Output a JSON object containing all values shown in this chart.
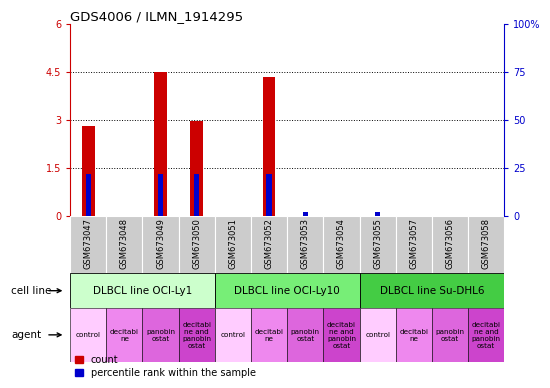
{
  "title": "GDS4006 / ILMN_1914295",
  "samples": [
    "GSM673047",
    "GSM673048",
    "GSM673049",
    "GSM673050",
    "GSM673051",
    "GSM673052",
    "GSM673053",
    "GSM673054",
    "GSM673055",
    "GSM673057",
    "GSM673056",
    "GSM673058"
  ],
  "count_values": [
    2.8,
    0,
    4.5,
    2.95,
    0,
    4.35,
    0,
    0,
    0,
    0,
    0,
    0
  ],
  "percentile_values": [
    22,
    0,
    22,
    22,
    0,
    22,
    2,
    0,
    2,
    0,
    0,
    0
  ],
  "ylim_left": [
    0,
    6
  ],
  "ylim_right": [
    0,
    100
  ],
  "yticks_left": [
    0,
    1.5,
    3,
    4.5,
    6
  ],
  "yticks_left_labels": [
    "0",
    "1.5",
    "3",
    "4.5",
    "6"
  ],
  "yticks_right": [
    0,
    25,
    50,
    75,
    100
  ],
  "yticks_right_labels": [
    "0",
    "25",
    "50",
    "75",
    "100%"
  ],
  "cell_lines": [
    {
      "label": "DLBCL line OCI-Ly1",
      "start": 0,
      "end": 4,
      "color": "#ccffcc"
    },
    {
      "label": "DLBCL line OCI-Ly10",
      "start": 4,
      "end": 8,
      "color": "#77ee77"
    },
    {
      "label": "DLBCL line Su-DHL6",
      "start": 8,
      "end": 12,
      "color": "#44cc44"
    }
  ],
  "agents": [
    "control",
    "decitabi\nne",
    "panobin\nostat",
    "decitabi\nne and\npanobin\nostat",
    "control",
    "decitabi\nne",
    "panobin\nostat",
    "decitabi\nne and\npanobin\nostat",
    "control",
    "decitabi\nne",
    "panobin\nostat",
    "decitabi\nne and\npanobin\nostat"
  ],
  "agent_colors": [
    "#ffccff",
    "#ff99ff",
    "#ff66ff",
    "#ff33ff",
    "#ffccff",
    "#ff99ff",
    "#ff66ff",
    "#ff33ff",
    "#ffccff",
    "#ff99ff",
    "#ff66ff",
    "#ff33ff"
  ],
  "bar_color_count": "#cc0000",
  "bar_color_pct": "#0000cc",
  "tick_bg": "#cccccc",
  "count_bar_width": 0.35,
  "pct_bar_width": 0.15
}
